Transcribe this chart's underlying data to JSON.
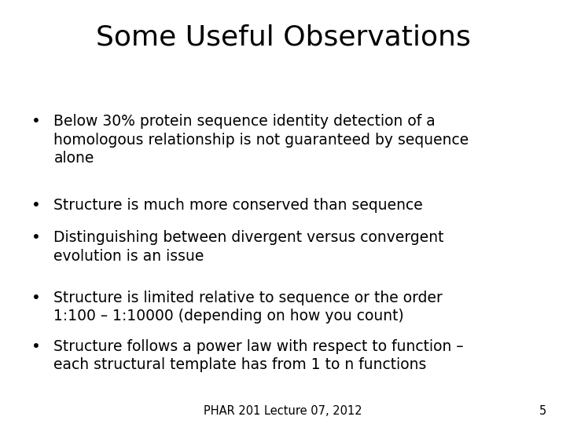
{
  "title": "Some Useful Observations",
  "bullets": [
    "Below 30% protein sequence identity detection of a\nhomologous relationship is not guaranteed by sequence\nalone",
    "Structure is much more conserved than sequence",
    "Distinguishing between divergent versus convergent\nevolution is an issue",
    "Structure is limited relative to sequence or the order\n1:100 – 1:10000 (depending on how you count)",
    "Structure follows a power law with respect to function –\neach structural template has from 1 to n functions"
  ],
  "footer": "PHAR 201 Lecture 07, 2012",
  "page_number": "5",
  "background_color": "#ffffff",
  "text_color": "#000000",
  "title_fontsize": 26,
  "bullet_fontsize": 13.5,
  "footer_fontsize": 10.5
}
